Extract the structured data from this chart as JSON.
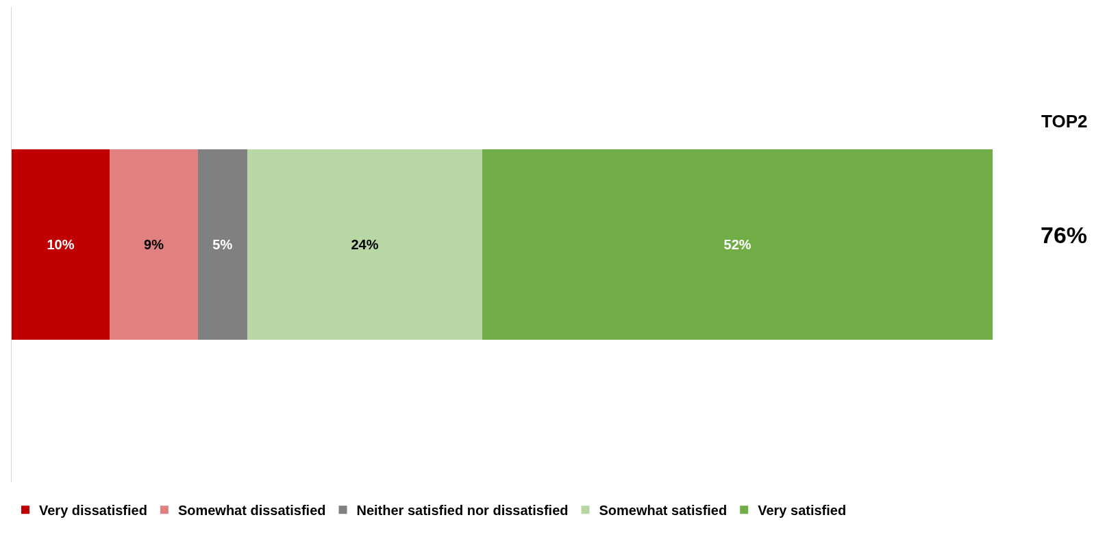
{
  "chart_data": {
    "type": "bar",
    "orientation": "horizontal",
    "stacked": true,
    "categories": [
      null
    ],
    "series": [
      {
        "name": "Very dissatisfied",
        "color": "#c00000",
        "values": [
          10
        ],
        "value_labels": [
          "10%"
        ]
      },
      {
        "name": "Somewhat dissatisfied",
        "color": "#e08080",
        "values": [
          9
        ],
        "value_labels": [
          "9%"
        ]
      },
      {
        "name": "Neither satisfied nor dissatisfied",
        "color": "#808080",
        "values": [
          5
        ],
        "value_labels": [
          "5%"
        ]
      },
      {
        "name": "Somewhat satisfied",
        "color": "#b9d7a5",
        "values": [
          24
        ],
        "value_labels": [
          "24%"
        ]
      },
      {
        "name": "Very satisfied",
        "color": "#70ad47",
        "values": [
          52
        ],
        "value_labels": [
          "52%"
        ]
      }
    ],
    "legend": "bottom",
    "annotations": [
      "TOP2",
      "76%"
    ]
  }
}
